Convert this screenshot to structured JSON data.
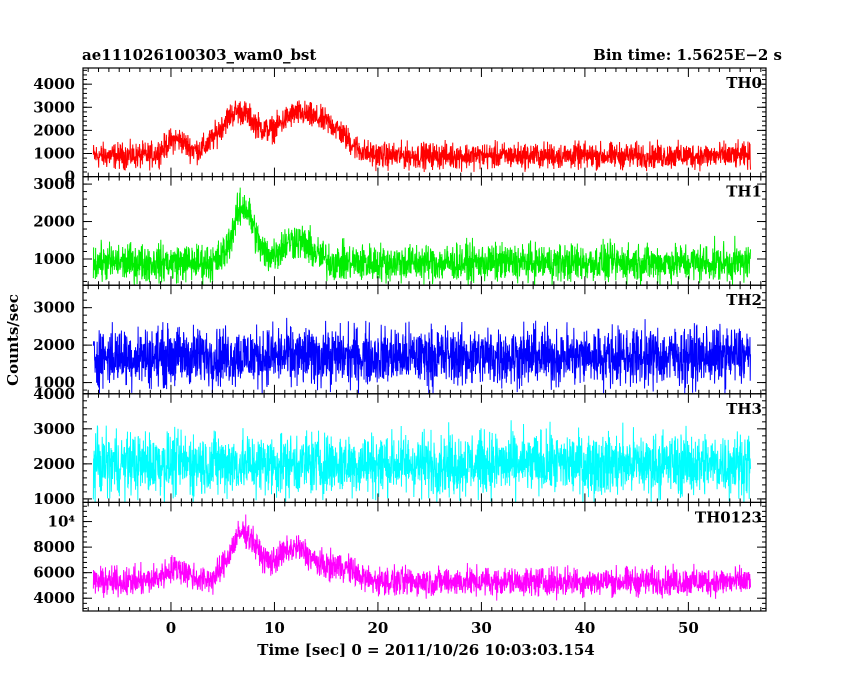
{
  "header": {
    "left": "ae111026100303_wam0_bst",
    "right": "Bin time: 1.5625E−2 s"
  },
  "xlabel": "Time [sec] 0 = 2011/10/26 10:03:03.154",
  "ylabel": "Counts/sec",
  "chart_data": {
    "type": "line",
    "x_range": [
      -8.5,
      57.5
    ],
    "x_ticks": [
      0,
      10,
      20,
      30,
      40,
      50
    ],
    "x_tick_labels": [
      "0",
      "10",
      "20",
      "30",
      "40",
      "50"
    ],
    "x_start": -7.5,
    "x_end": 56.0,
    "bin_time": 0.015625,
    "panels": [
      {
        "name": "TH0",
        "color": "#ff0000",
        "ylim": [
          0,
          4700
        ],
        "y_ticks": [
          0,
          1000,
          2000,
          3000,
          4000
        ],
        "y_tick_labels": [
          "0",
          "1000",
          "2000",
          "3000",
          "4000"
        ],
        "baseline": 900,
        "spread": 500,
        "bursts": [
          {
            "t": 0.5,
            "amp": 700,
            "w": 1.0
          },
          {
            "t": 6.5,
            "amp": 1900,
            "w": 1.8
          },
          {
            "t": 12.0,
            "amp": 1700,
            "w": 1.8
          },
          {
            "t": 15.5,
            "amp": 1100,
            "w": 1.6
          }
        ]
      },
      {
        "name": "TH1",
        "color": "#00ee00",
        "ylim": [
          300,
          3200
        ],
        "y_ticks": [
          1000,
          2000,
          3000
        ],
        "y_tick_labels": [
          "1000",
          "2000",
          "3000"
        ],
        "baseline": 900,
        "spread": 450,
        "bursts": [
          {
            "t": 7.0,
            "amp": 1500,
            "w": 1.0
          },
          {
            "t": 12.0,
            "amp": 600,
            "w": 1.5
          }
        ]
      },
      {
        "name": "TH2",
        "color": "#0000ff",
        "ylim": [
          700,
          3600
        ],
        "y_ticks": [
          1000,
          2000,
          3000
        ],
        "y_tick_labels": [
          "1000",
          "2000",
          "3000"
        ],
        "baseline": 1700,
        "spread": 700,
        "bursts": []
      },
      {
        "name": "TH3",
        "color": "#00ffff",
        "ylim": [
          900,
          4000
        ],
        "y_ticks": [
          1000,
          2000,
          3000,
          4000
        ],
        "y_tick_labels": [
          "1000",
          "2000",
          "3000",
          "4000"
        ],
        "baseline": 2000,
        "spread": 800,
        "bursts": []
      },
      {
        "name": "TH0123",
        "color": "#ff00ff",
        "ylim": [
          3000,
          11500
        ],
        "y_ticks": [
          4000,
          6000,
          8000,
          10000
        ],
        "y_tick_labels": [
          "4000",
          "6000",
          "8000",
          "10⁴"
        ],
        "baseline": 5300,
        "spread": 1000,
        "bursts": [
          {
            "t": 0.5,
            "amp": 1000,
            "w": 1.2
          },
          {
            "t": 7.0,
            "amp": 3800,
            "w": 1.3
          },
          {
            "t": 12.0,
            "amp": 2600,
            "w": 1.8
          },
          {
            "t": 16.5,
            "amp": 1100,
            "w": 1.3
          }
        ]
      }
    ]
  }
}
